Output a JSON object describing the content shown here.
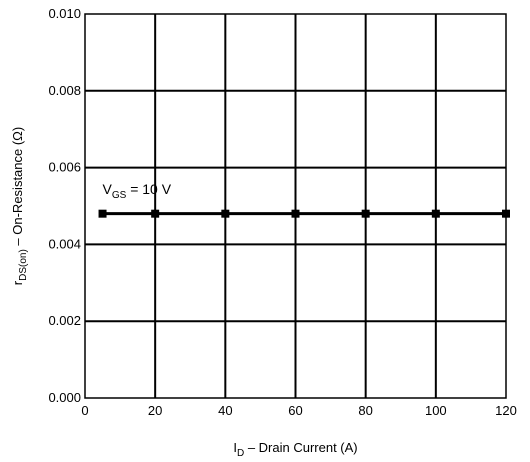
{
  "chart_data": {
    "type": "line",
    "title": "",
    "xlabel": {
      "main": "I",
      "sub": "D",
      "rest": " – Drain Current (A)"
    },
    "ylabel": {
      "main": "r",
      "sub": "DS(on)",
      "rest": " – On-Resistance (Ω)"
    },
    "xlim": [
      0,
      120
    ],
    "ylim": [
      0,
      0.01
    ],
    "x_ticks": [
      0,
      20,
      40,
      60,
      80,
      100,
      120
    ],
    "x_tick_labels": [
      "0",
      "20",
      "40",
      "60",
      "80",
      "100",
      "120"
    ],
    "y_ticks": [
      0,
      0.002,
      0.004,
      0.006,
      0.008,
      0.01
    ],
    "y_tick_labels": [
      "0.000",
      "0.002",
      "0.004",
      "0.006",
      "0.008",
      "0.010"
    ],
    "grid": true,
    "series": [
      {
        "x": [
          5,
          20,
          40,
          60,
          80,
          100,
          120
        ],
        "y": [
          0.0048,
          0.0048,
          0.0048,
          0.0048,
          0.0048,
          0.0048,
          0.0048
        ]
      }
    ],
    "annotations": [
      {
        "main": "V",
        "sub": "GS",
        "rest": " = 10 V",
        "x": 3,
        "y": 0.0051
      }
    ],
    "colors": {
      "line": "#000000",
      "grid": "#000000",
      "background": "#ffffff"
    }
  }
}
